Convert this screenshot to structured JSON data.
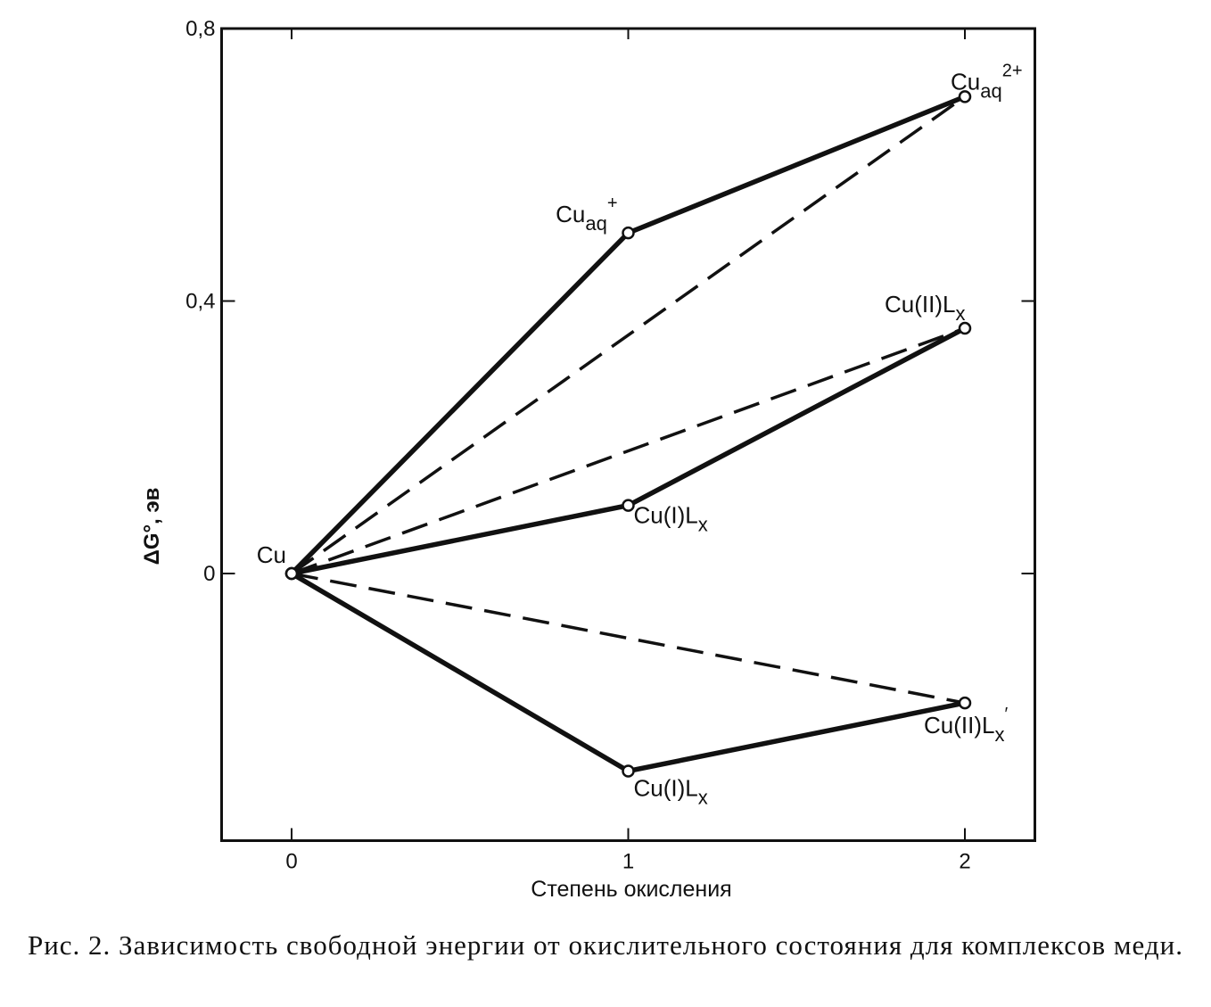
{
  "chart_data": {
    "type": "line",
    "caption": "Рис. 2. Зависимость свободной энергии от окислительного состояния для комплексов меди.",
    "xlabel": "Степень окисления",
    "ylabel": "ΔG°, эв",
    "xlim": [
      -0.2,
      2.2
    ],
    "ylim": [
      -0.4,
      0.8
    ],
    "xticks": [
      0,
      1,
      2
    ],
    "yticks": [
      {
        "value": 0.8,
        "label": "0,8"
      },
      {
        "value": 0.4,
        "label": "0,4"
      },
      0
    ],
    "color": "#111111",
    "series": [
      {
        "style": "solid",
        "x": [
          0,
          1,
          2
        ],
        "values": [
          0,
          0.5,
          0.7
        ],
        "markers": true,
        "point_labels": [
          {
            "text": "Cu"
          },
          {
            "text": "Cu",
            "sub": "aq",
            "sup": "+"
          },
          {
            "text": "Cu",
            "sub": "aq",
            "sup": "2+"
          }
        ]
      },
      {
        "style": "solid",
        "x": [
          0,
          1,
          2
        ],
        "values": [
          0,
          0.1,
          0.36
        ],
        "markers": true,
        "point_labels": [
          null,
          {
            "text": "Cu(I)L",
            "sub": "x"
          },
          {
            "text": "Cu(II)L",
            "sub": "x"
          }
        ]
      },
      {
        "style": "solid",
        "x": [
          0,
          1,
          2
        ],
        "values": [
          0,
          -0.29,
          -0.19
        ],
        "markers": true,
        "point_labels": [
          null,
          {
            "text": "Cu(I)L",
            "sub": "x"
          },
          {
            "text": "Cu(II)L",
            "sub": "x",
            "sup": "′"
          }
        ]
      },
      {
        "style": "dashed",
        "x": [
          0,
          2
        ],
        "values": [
          0,
          0.7
        ]
      },
      {
        "style": "dashed",
        "x": [
          0,
          2
        ],
        "values": [
          0,
          0.36
        ]
      },
      {
        "style": "dashed",
        "x": [
          0,
          2
        ],
        "values": [
          0,
          -0.19
        ]
      }
    ]
  }
}
